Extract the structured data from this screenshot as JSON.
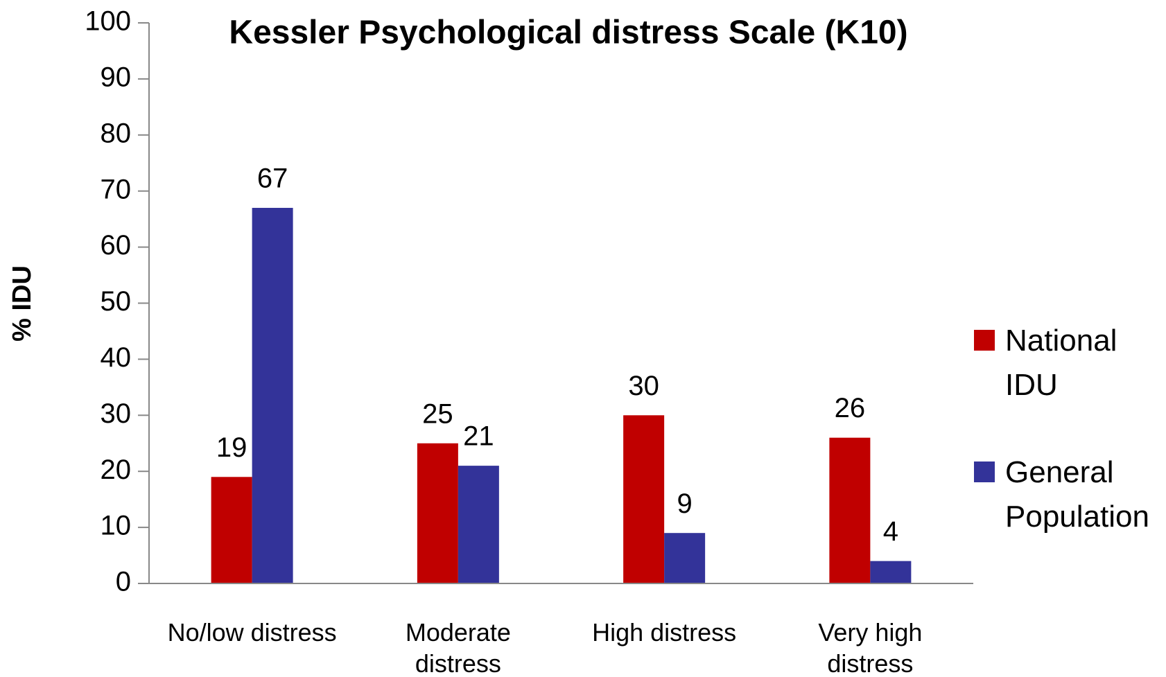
{
  "chart_data": {
    "type": "bar",
    "title": "Kessler Psychological distress Scale (K10)",
    "y_label": "% IDU",
    "categories": [
      "No/low distress",
      "Moderate distress",
      "High distress",
      "Very high distress"
    ],
    "series": [
      {
        "name": "National IDU",
        "color": "#c00000",
        "values": [
          19,
          25,
          30,
          26
        ]
      },
      {
        "name": "General Population",
        "color": "#333399",
        "values": [
          67,
          21,
          9,
          4
        ]
      }
    ],
    "ylim": [
      0,
      100
    ],
    "yticks": [
      0,
      10,
      20,
      30,
      40,
      50,
      60,
      70,
      80,
      90,
      100
    ],
    "grid": false,
    "legend": "right"
  }
}
